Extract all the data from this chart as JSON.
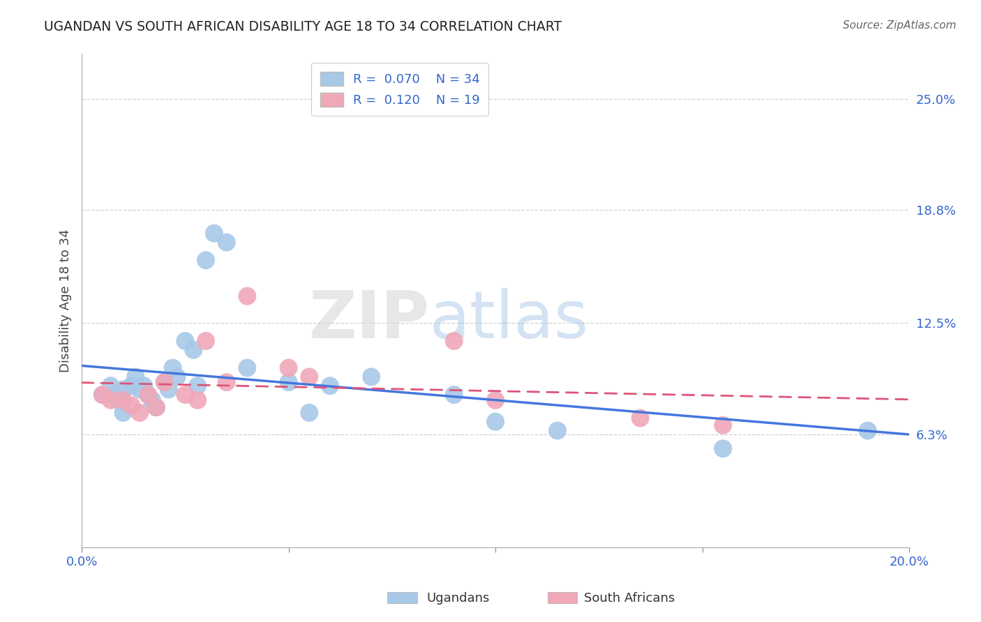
{
  "title": "UGANDAN VS SOUTH AFRICAN DISABILITY AGE 18 TO 34 CORRELATION CHART",
  "source": "Source: ZipAtlas.com",
  "ylabel": "Disability Age 18 to 34",
  "xlim": [
    0.0,
    0.2
  ],
  "ylim": [
    0.0,
    0.275
  ],
  "xtick_vals": [
    0.0,
    0.05,
    0.1,
    0.15,
    0.2
  ],
  "xtick_labels": [
    "0.0%",
    "",
    "",
    "",
    "20.0%"
  ],
  "ytick_vals": [
    0.063,
    0.125,
    0.188,
    0.25
  ],
  "ytick_labels": [
    "6.3%",
    "12.5%",
    "18.8%",
    "25.0%"
  ],
  "ugandan_R": 0.07,
  "ugandan_N": 34,
  "sa_R": 0.12,
  "sa_N": 19,
  "ugandan_color": "#a8c8e8",
  "sa_color": "#f0a8b8",
  "ugandan_line_color": "#4477dd",
  "sa_line_color": "#dd5577",
  "legend_label_ugandan": "Ugandans",
  "legend_label_sa": "South Africans",
  "watermark_zip": "ZIP",
  "watermark_atlas": "atlas",
  "ugandan_x": [
    0.005,
    0.007,
    0.008,
    0.009,
    0.01,
    0.01,
    0.01,
    0.012,
    0.013,
    0.014,
    0.015,
    0.016,
    0.017,
    0.018,
    0.02,
    0.021,
    0.022,
    0.023,
    0.025,
    0.027,
    0.028,
    0.03,
    0.032,
    0.035,
    0.04,
    0.05,
    0.055,
    0.06,
    0.07,
    0.09,
    0.1,
    0.115,
    0.155,
    0.19
  ],
  "ugandan_y": [
    0.085,
    0.09,
    0.085,
    0.082,
    0.088,
    0.082,
    0.075,
    0.09,
    0.095,
    0.088,
    0.09,
    0.085,
    0.082,
    0.078,
    0.092,
    0.088,
    0.1,
    0.095,
    0.115,
    0.11,
    0.09,
    0.16,
    0.175,
    0.17,
    0.1,
    0.092,
    0.075,
    0.09,
    0.095,
    0.085,
    0.07,
    0.065,
    0.055,
    0.065
  ],
  "sa_x": [
    0.005,
    0.007,
    0.01,
    0.012,
    0.014,
    0.016,
    0.018,
    0.02,
    0.025,
    0.028,
    0.03,
    0.035,
    0.04,
    0.05,
    0.055,
    0.09,
    0.1,
    0.135,
    0.155
  ],
  "sa_y": [
    0.085,
    0.082,
    0.082,
    0.079,
    0.075,
    0.085,
    0.078,
    0.092,
    0.085,
    0.082,
    0.115,
    0.092,
    0.14,
    0.1,
    0.095,
    0.115,
    0.082,
    0.072,
    0.068
  ]
}
